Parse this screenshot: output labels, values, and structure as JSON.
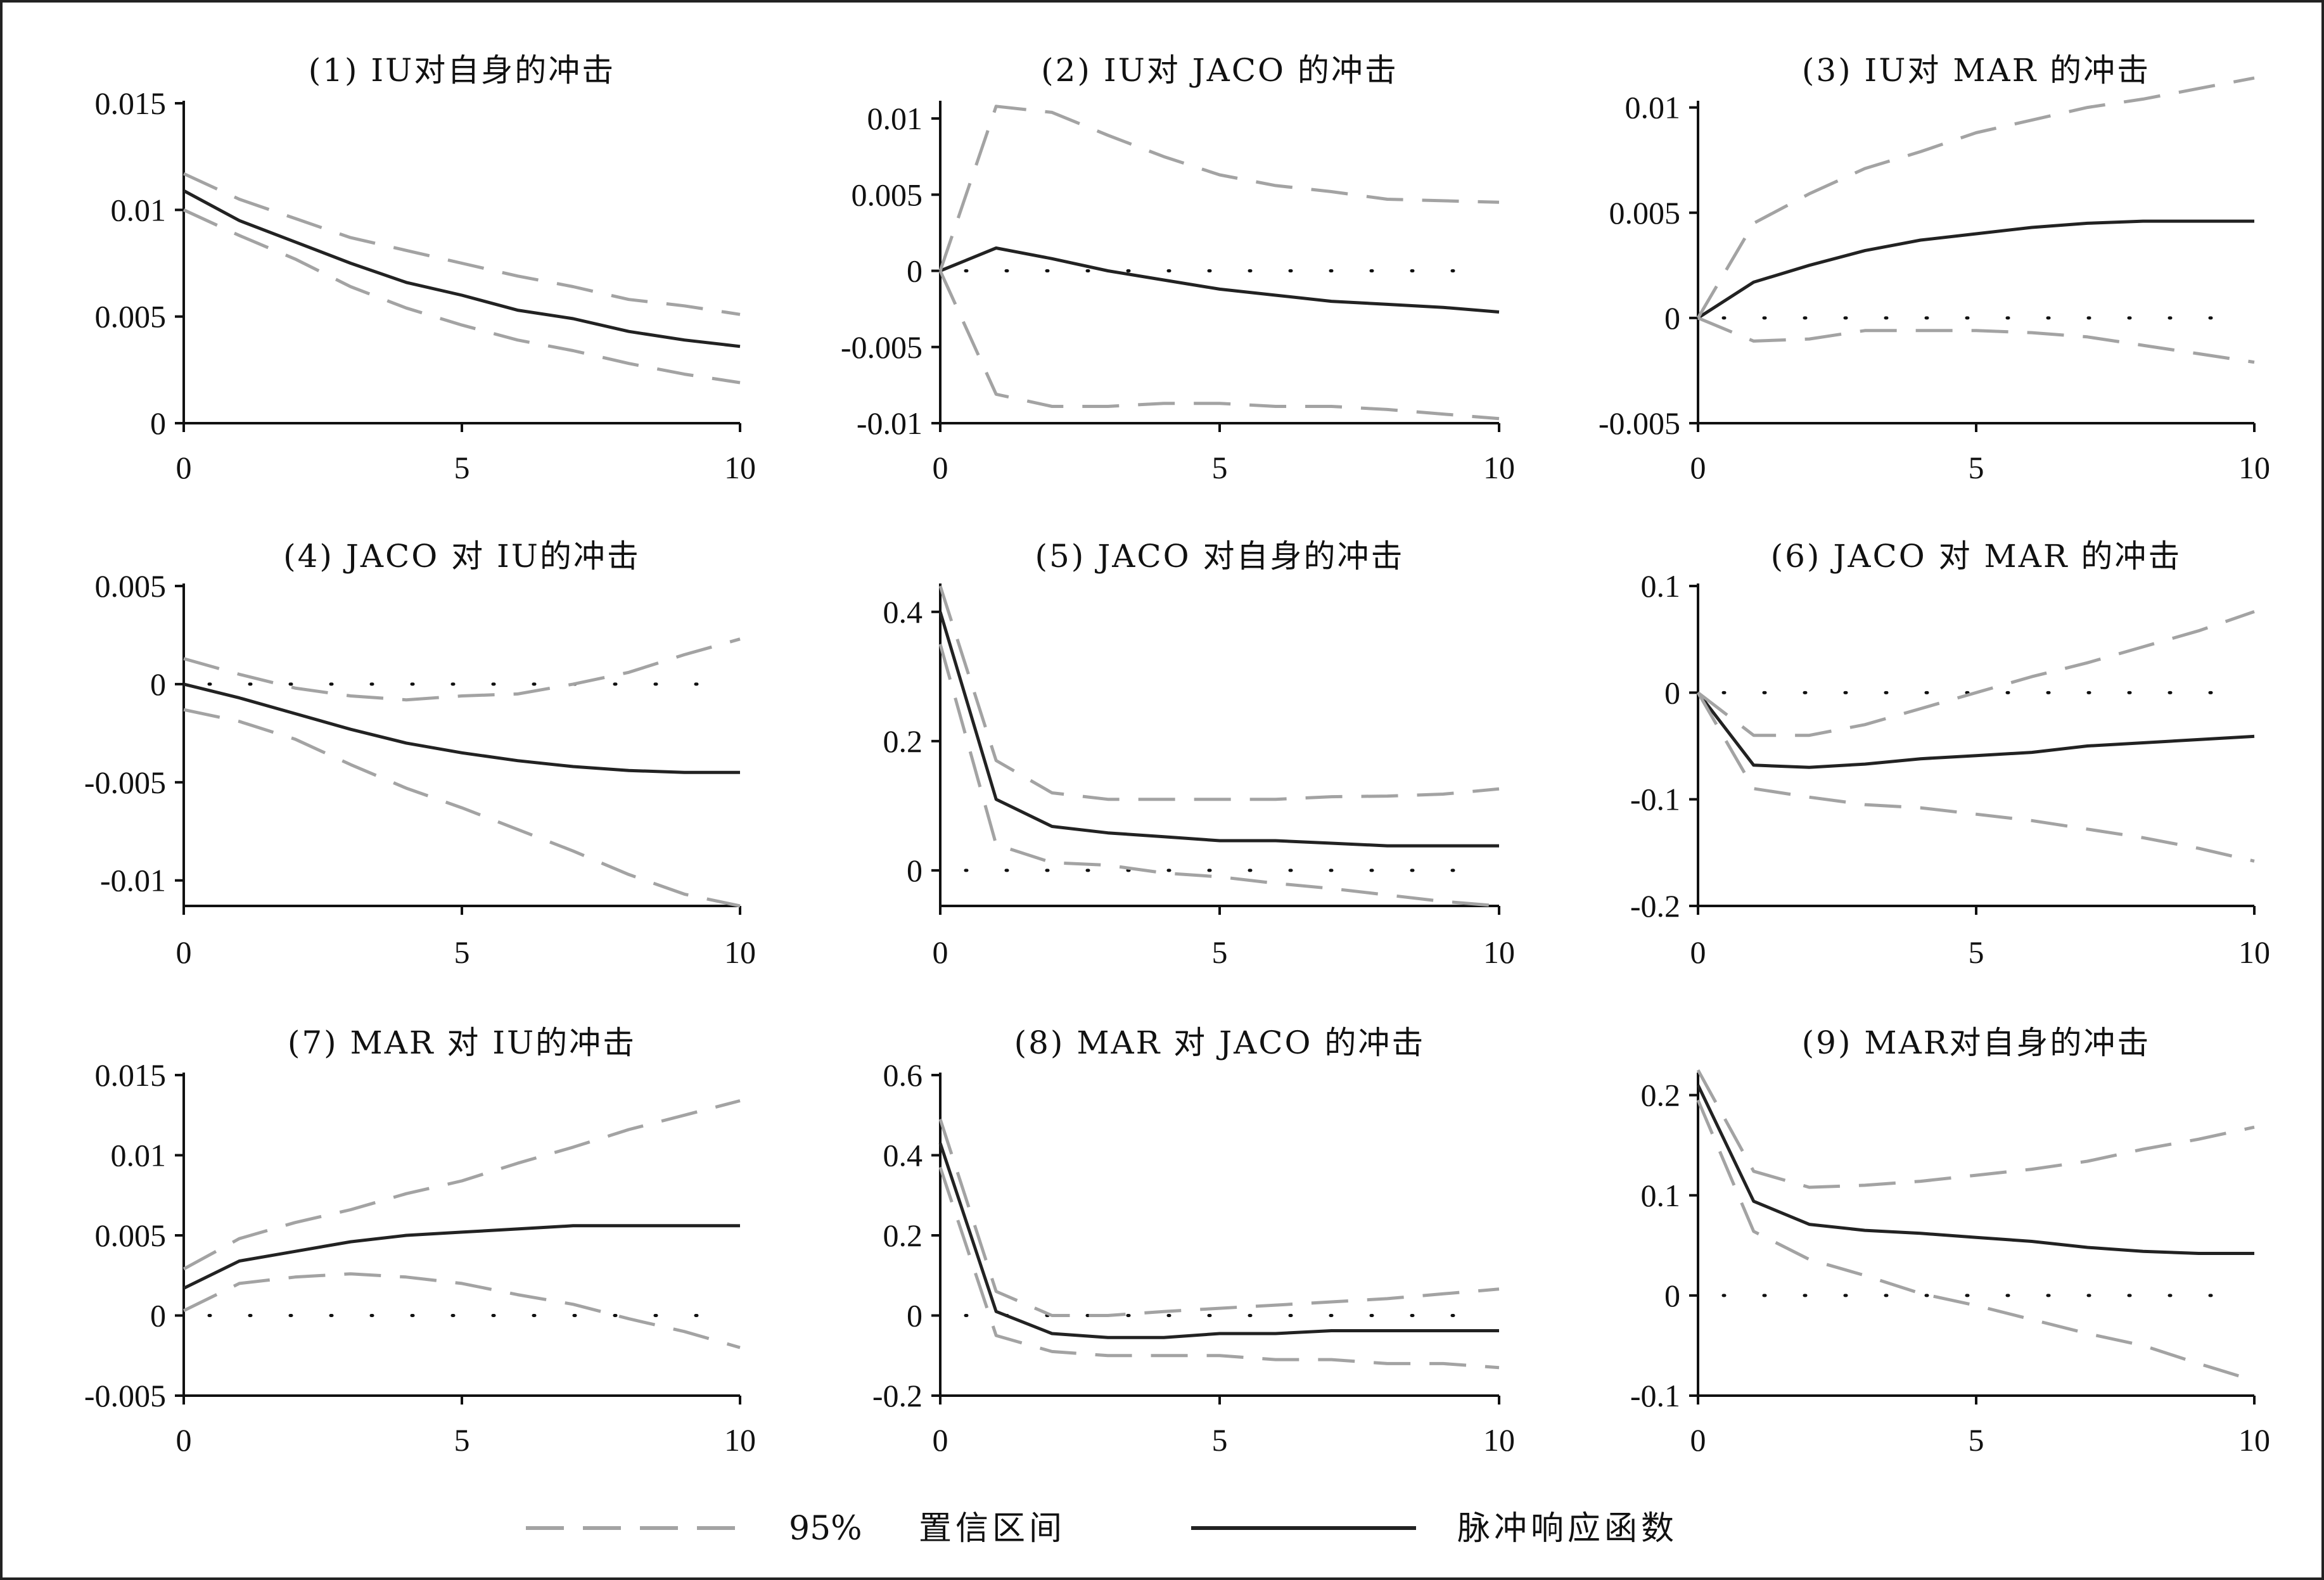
{
  "chart_data": [
    {
      "type": "line",
      "title": "(1)  IU对自身的冲击",
      "xlim": [
        0,
        10
      ],
      "ylim": [
        0,
        0.015
      ],
      "xticks": [
        "0",
        "5",
        "10"
      ],
      "yticks": [
        "0",
        "0.005",
        "0.01",
        "0.015"
      ],
      "x": [
        0,
        1,
        2,
        3,
        4,
        5,
        6,
        7,
        8,
        9,
        10
      ],
      "series": [
        {
          "name": "脉冲响应函数",
          "values": [
            0.0109,
            0.0095,
            0.0085,
            0.0075,
            0.0066,
            0.006,
            0.0053,
            0.0049,
            0.0043,
            0.0039,
            0.0036
          ]
        },
        {
          "name": "95% 置信区间",
          "values": [
            0.0117,
            0.0105,
            0.0096,
            0.0087,
            0.0081,
            0.0075,
            0.0069,
            0.0064,
            0.0058,
            0.0055,
            0.0051
          ]
        },
        {
          "name": "95% 置信区间",
          "values": [
            0.01,
            0.0088,
            0.0077,
            0.0064,
            0.0054,
            0.0046,
            0.0039,
            0.0034,
            0.0028,
            0.0023,
            0.0019
          ]
        }
      ]
    },
    {
      "type": "line",
      "title": "(2)  IU对 JACO 的冲击",
      "xlim": [
        0,
        10
      ],
      "ylim": [
        -0.01,
        0.011
      ],
      "xticks": [
        "0",
        "5",
        "10"
      ],
      "yticks": [
        "-0.01",
        "-0.005",
        "0",
        "0.005",
        "0.01"
      ],
      "x": [
        0,
        1,
        2,
        3,
        4,
        5,
        6,
        7,
        8,
        9,
        10
      ],
      "series": [
        {
          "name": "脉冲响应函数",
          "values": [
            0,
            0.0015,
            0.0008,
            0,
            -0.0006,
            -0.0012,
            -0.0016,
            -0.002,
            -0.0022,
            -0.0024,
            -0.0027
          ]
        },
        {
          "name": "95% 置信区间",
          "values": [
            0,
            0.0108,
            0.0104,
            0.0089,
            0.0075,
            0.0063,
            0.0056,
            0.0052,
            0.0047,
            0.0046,
            0.0045
          ]
        },
        {
          "name": "95% 置信区间",
          "values": [
            0,
            -0.0081,
            -0.0089,
            -0.0089,
            -0.0087,
            -0.0087,
            -0.0089,
            -0.0089,
            -0.0091,
            -0.0094,
            -0.0097
          ]
        }
      ]
    },
    {
      "type": "line",
      "title": "(3)  IU对 MAR 的冲击",
      "xlim": [
        0,
        10
      ],
      "ylim": [
        -0.005,
        0.0102
      ],
      "xticks": [
        "0",
        "5",
        "10"
      ],
      "yticks": [
        "-0.005",
        "0",
        "0.005",
        "0.01"
      ],
      "x": [
        0,
        1,
        2,
        3,
        4,
        5,
        6,
        7,
        8,
        9,
        10
      ],
      "series": [
        {
          "name": "脉冲响应函数",
          "values": [
            0,
            0.0017,
            0.0025,
            0.0032,
            0.0037,
            0.004,
            0.0043,
            0.0045,
            0.0046,
            0.0046,
            0.0046
          ]
        },
        {
          "name": "95% 置信区间",
          "values": [
            0,
            0.0045,
            0.0059,
            0.0071,
            0.0079,
            0.0088,
            0.0094,
            0.01,
            0.0104,
            0.0109,
            0.0114
          ]
        },
        {
          "name": "95% 置信区间",
          "values": [
            0,
            -0.0011,
            -0.001,
            -0.0006,
            -0.0006,
            -0.0006,
            -0.0007,
            -0.0009,
            -0.0013,
            -0.0017,
            -0.0021
          ]
        }
      ]
    },
    {
      "type": "line",
      "title": "(4)  JACO 对 IU的冲击",
      "xlim": [
        0,
        10
      ],
      "ylim": [
        -0.0113,
        0.005
      ],
      "xticks": [
        "0",
        "5",
        "10"
      ],
      "yticks": [
        "-0.01",
        "-0.005",
        "0",
        "0.005"
      ],
      "x": [
        0,
        1,
        2,
        3,
        4,
        5,
        6,
        7,
        8,
        9,
        10
      ],
      "series": [
        {
          "name": "脉冲响应函数",
          "values": [
            0,
            -0.0007,
            -0.0015,
            -0.0023,
            -0.003,
            -0.0035,
            -0.0039,
            -0.0042,
            -0.0044,
            -0.0045,
            -0.0045
          ]
        },
        {
          "name": "95% 置信区间",
          "values": [
            0.0013,
            0.0005,
            -0.0002,
            -0.0006,
            -0.0008,
            -0.0006,
            -0.0005,
            0,
            0.0006,
            0.0015,
            0.0023
          ]
        },
        {
          "name": "95% 置信区间",
          "values": [
            -0.0013,
            -0.0019,
            -0.0028,
            -0.0041,
            -0.0053,
            -0.0063,
            -0.0074,
            -0.0085,
            -0.0097,
            -0.0107,
            -0.0113
          ]
        }
      ]
    },
    {
      "type": "line",
      "title": "(5)  JACO 对自身的冲击",
      "xlim": [
        0,
        10
      ],
      "ylim": [
        -0.055,
        0.44
      ],
      "xticks": [
        "0",
        "5",
        "10"
      ],
      "yticks": [
        "0",
        "0.2",
        "0.4"
      ],
      "x": [
        0,
        1,
        2,
        3,
        4,
        5,
        6,
        7,
        8,
        9,
        10
      ],
      "series": [
        {
          "name": "脉冲响应函数",
          "values": [
            0.4,
            0.11,
            0.068,
            0.058,
            0.052,
            0.046,
            0.046,
            0.042,
            0.038,
            0.038,
            0.038
          ]
        },
        {
          "name": "95% 置信区间",
          "values": [
            0.44,
            0.17,
            0.12,
            0.11,
            0.11,
            0.11,
            0.11,
            0.114,
            0.115,
            0.118,
            0.126
          ]
        },
        {
          "name": "95% 置信区间",
          "values": [
            0.35,
            0.04,
            0.012,
            0.008,
            -0.004,
            -0.01,
            -0.02,
            -0.028,
            -0.038,
            -0.048,
            -0.055
          ]
        }
      ]
    },
    {
      "type": "line",
      "title": "(6)  JACO 对 MAR 的冲击",
      "xlim": [
        0,
        10
      ],
      "ylim": [
        -0.2,
        0.1
      ],
      "xticks": [
        "0",
        "5",
        "10"
      ],
      "yticks": [
        "-0.2",
        "-0.1",
        "0",
        "0.1"
      ],
      "x": [
        0,
        1,
        2,
        3,
        4,
        5,
        6,
        7,
        8,
        9,
        10
      ],
      "series": [
        {
          "name": "脉冲响应函数",
          "values": [
            0,
            -0.068,
            -0.07,
            -0.067,
            -0.062,
            -0.059,
            -0.056,
            -0.05,
            -0.047,
            -0.044,
            -0.041
          ]
        },
        {
          "name": "95% 置信区间",
          "values": [
            0,
            -0.04,
            -0.04,
            -0.03,
            -0.015,
            0,
            0.015,
            0.028,
            0.043,
            0.058,
            0.076
          ]
        },
        {
          "name": "95% 置信区间",
          "values": [
            0,
            -0.09,
            -0.098,
            -0.105,
            -0.108,
            -0.114,
            -0.12,
            -0.128,
            -0.136,
            -0.146,
            -0.158
          ]
        }
      ]
    },
    {
      "type": "line",
      "title": "(7)  MAR 对 IU的冲击",
      "xlim": [
        0,
        10
      ],
      "ylim": [
        -0.005,
        0.015
      ],
      "xticks": [
        "0",
        "5",
        "10"
      ],
      "yticks": [
        "-0.005",
        "0",
        "0.005",
        "0.01",
        "0.015"
      ],
      "x": [
        0,
        1,
        2,
        3,
        4,
        5,
        6,
        7,
        8,
        9,
        10
      ],
      "series": [
        {
          "name": "脉冲响应函数",
          "values": [
            0.0017,
            0.0034,
            0.004,
            0.0046,
            0.005,
            0.0052,
            0.0054,
            0.0056,
            0.0056,
            0.0056,
            0.0056
          ]
        },
        {
          "name": "95% 置信区间",
          "values": [
            0.0029,
            0.0048,
            0.0058,
            0.0066,
            0.0076,
            0.0084,
            0.0095,
            0.0105,
            0.0116,
            0.0125,
            0.0134
          ]
        },
        {
          "name": "95% 置信区间",
          "values": [
            0.0003,
            0.002,
            0.0024,
            0.0026,
            0.0024,
            0.002,
            0.0013,
            0.0007,
            -0.0002,
            -0.001,
            -0.002
          ]
        }
      ]
    },
    {
      "type": "line",
      "title": "(8)  MAR 对 JACO 的冲击",
      "xlim": [
        0,
        10
      ],
      "ylim": [
        -0.2,
        0.6
      ],
      "xticks": [
        "0",
        "5",
        "10"
      ],
      "yticks": [
        "-0.2",
        "0",
        "0.2",
        "0.4",
        "0.6"
      ],
      "x": [
        0,
        1,
        2,
        3,
        4,
        5,
        6,
        7,
        8,
        9,
        10
      ],
      "series": [
        {
          "name": "脉冲响应函数",
          "values": [
            0.43,
            0.01,
            -0.045,
            -0.055,
            -0.055,
            -0.045,
            -0.045,
            -0.038,
            -0.038,
            -0.038,
            -0.038
          ]
        },
        {
          "name": "95% 置信区间",
          "values": [
            0.49,
            0.06,
            0,
            0,
            0.01,
            0.018,
            0.026,
            0.034,
            0.042,
            0.054,
            0.066
          ]
        },
        {
          "name": "95% 置信区间",
          "values": [
            0.37,
            -0.05,
            -0.09,
            -0.1,
            -0.1,
            -0.1,
            -0.11,
            -0.11,
            -0.12,
            -0.12,
            -0.13
          ]
        }
      ]
    },
    {
      "type": "line",
      "title": "(9)  MAR对自身的冲击",
      "xlim": [
        0,
        10
      ],
      "ylim": [
        -0.1,
        0.22
      ],
      "xticks": [
        "0",
        "5",
        "10"
      ],
      "yticks": [
        "-0.1",
        "0",
        "0.1",
        "0.2"
      ],
      "x": [
        0,
        1,
        2,
        3,
        4,
        5,
        6,
        7,
        8,
        9,
        10
      ],
      "series": [
        {
          "name": "脉冲响应函数",
          "values": [
            0.21,
            0.094,
            0.071,
            0.065,
            0.062,
            0.058,
            0.054,
            0.048,
            0.044,
            0.042,
            0.042
          ]
        },
        {
          "name": "95% 置信区间",
          "values": [
            0.225,
            0.124,
            0.108,
            0.11,
            0.114,
            0.12,
            0.126,
            0.134,
            0.146,
            0.156,
            0.168
          ]
        },
        {
          "name": "95% 置信区间",
          "values": [
            0.195,
            0.064,
            0.036,
            0.02,
            0.002,
            -0.01,
            -0.024,
            -0.038,
            -0.05,
            -0.068,
            -0.085
          ]
        }
      ]
    }
  ],
  "legend": {
    "ci_label": "95%",
    "ci_text": "置信区间",
    "irf_text": "脉冲响应函数"
  },
  "colors": {
    "irf": "#222222",
    "ci": "#a3a3a3",
    "axis": "#111111",
    "zero_dots": "#111111"
  }
}
